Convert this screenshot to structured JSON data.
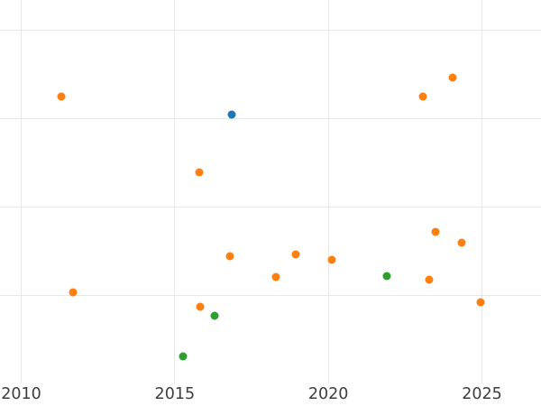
{
  "chart_data": {
    "type": "scatter",
    "title": "",
    "xlabel": "",
    "ylabel": "",
    "grid": true,
    "legend_position": "none",
    "x_ticks": [
      2010,
      2015,
      2020,
      2025
    ],
    "x_tick_labels": [
      "2010",
      "2015",
      "2020",
      "2025"
    ],
    "x_range": [
      2009.31,
      2026.92
    ],
    "y_range": [
      0,
      4.35
    ],
    "y_gridline_values": [
      1,
      2,
      3,
      4
    ],
    "y_tick_labels": [],
    "series": [
      {
        "name": "orange-series",
        "color": "#ff7f0e",
        "points": [
          {
            "x": 2011.31,
            "y": 3.25
          },
          {
            "x": 2011.69,
            "y": 1.03
          },
          {
            "x": 2015.8,
            "y": 2.39
          },
          {
            "x": 2015.82,
            "y": 0.87
          },
          {
            "x": 2016.79,
            "y": 1.44
          },
          {
            "x": 2018.29,
            "y": 1.21
          },
          {
            "x": 2018.93,
            "y": 1.46
          },
          {
            "x": 2020.12,
            "y": 1.4
          },
          {
            "x": 2023.08,
            "y": 3.25
          },
          {
            "x": 2023.28,
            "y": 1.18
          },
          {
            "x": 2023.5,
            "y": 1.72
          },
          {
            "x": 2024.04,
            "y": 3.47
          },
          {
            "x": 2024.33,
            "y": 1.59
          },
          {
            "x": 2024.95,
            "y": 0.92
          }
        ]
      },
      {
        "name": "blue-series",
        "color": "#1f77b4",
        "points": [
          {
            "x": 2016.85,
            "y": 3.05
          }
        ]
      },
      {
        "name": "green-series",
        "color": "#2ca02c",
        "points": [
          {
            "x": 2015.28,
            "y": 0.31
          },
          {
            "x": 2016.3,
            "y": 0.77
          },
          {
            "x": 2021.91,
            "y": 1.22
          }
        ]
      }
    ],
    "style": {
      "background_color": "#ffffff",
      "grid_color": "#e8e8e8",
      "tick_label_color": "#3d3d3d"
    }
  }
}
